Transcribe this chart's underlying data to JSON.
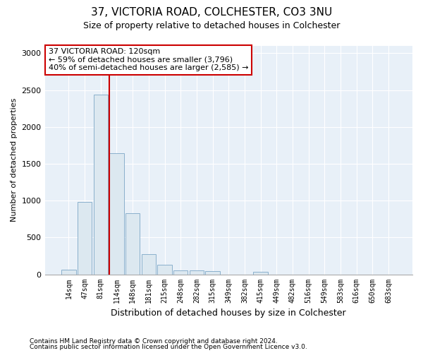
{
  "title1": "37, VICTORIA ROAD, COLCHESTER, CO3 3NU",
  "title2": "Size of property relative to detached houses in Colchester",
  "xlabel": "Distribution of detached houses by size in Colchester",
  "ylabel": "Number of detached properties",
  "categories": [
    "14sqm",
    "47sqm",
    "81sqm",
    "114sqm",
    "148sqm",
    "181sqm",
    "215sqm",
    "248sqm",
    "282sqm",
    "315sqm",
    "349sqm",
    "382sqm",
    "415sqm",
    "449sqm",
    "482sqm",
    "516sqm",
    "549sqm",
    "583sqm",
    "616sqm",
    "650sqm",
    "683sqm"
  ],
  "values": [
    65,
    980,
    2440,
    1640,
    830,
    270,
    130,
    55,
    50,
    45,
    0,
    0,
    30,
    0,
    0,
    0,
    0,
    0,
    0,
    0,
    0
  ],
  "bar_color": "#dce8f0",
  "bar_edge_color": "#8ab0cc",
  "vline_x_index": 3,
  "vline_color": "#cc0000",
  "annotation_text": "37 VICTORIA ROAD: 120sqm\n← 59% of detached houses are smaller (3,796)\n40% of semi-detached houses are larger (2,585) →",
  "annotation_box_facecolor": "#ffffff",
  "annotation_box_edgecolor": "#cc0000",
  "ylim": [
    0,
    3100
  ],
  "yticks": [
    0,
    500,
    1000,
    1500,
    2000,
    2500,
    3000
  ],
  "footer1": "Contains HM Land Registry data © Crown copyright and database right 2024.",
  "footer2": "Contains public sector information licensed under the Open Government Licence v3.0.",
  "background_color": "#ffffff",
  "plot_bg_color": "#e8f0f8",
  "grid_color": "#ffffff",
  "title1_fontsize": 11,
  "title2_fontsize": 9,
  "ylabel_fontsize": 8,
  "xlabel_fontsize": 9
}
